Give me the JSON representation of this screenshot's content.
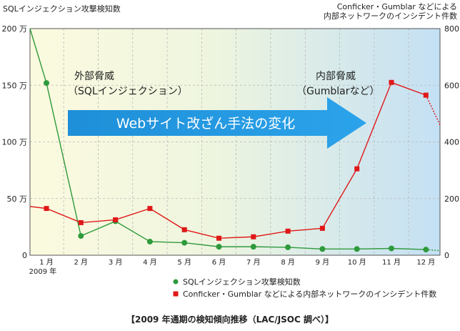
{
  "chart_data": {
    "type": "line",
    "left_axis_title": "SQLインジェクション攻撃検知数",
    "right_axis_title_line1": "Conficker・Gumblar などによる",
    "right_axis_title_line2": "内部ネットワークのインシデント件数",
    "categories": [
      "1 月",
      "2 月",
      "3 月",
      "4 月",
      "5 月",
      "6 月",
      "7 月",
      "8 月",
      "9 月",
      "10 月",
      "11 月",
      "12 月"
    ],
    "year_label": "2009 年",
    "y_left": {
      "min": 0,
      "max": 2000000,
      "ticks": [
        0,
        500000,
        1000000,
        1500000,
        2000000
      ],
      "tick_labels": [
        "0",
        "50 万",
        "100 万",
        "150 万",
        "200 万"
      ]
    },
    "y_right": {
      "min": 0,
      "max": 800,
      "ticks": [
        0,
        200,
        400,
        600,
        800
      ],
      "tick_labels": [
        "0",
        "200",
        "400",
        "600",
        "800"
      ]
    },
    "series": [
      {
        "name": "SQLインジェクション攻撃検知数",
        "axis": "left",
        "color": "#2e9a3c",
        "marker": "circle",
        "values": [
          1520000,
          170000,
          300000,
          120000,
          110000,
          75000,
          75000,
          70000,
          55000,
          55000,
          60000,
          50000
        ],
        "lead_in_value": 2000000,
        "trail_value": 40000
      },
      {
        "name": "Conficker・Gumblar などによる内部ネットワークのインシデント件数",
        "axis": "right",
        "color": "#e01818",
        "marker": "square",
        "values": [
          165,
          115,
          125,
          165,
          90,
          60,
          65,
          85,
          95,
          305,
          610,
          565
        ],
        "lead_in_value": 172,
        "trail_value": 460
      }
    ],
    "annotations": {
      "external_threat_line1": "外部脅威",
      "external_threat_line2": "（SQLインジェクション）",
      "internal_threat_line1": "内部脅威",
      "internal_threat_line2": "（Gumblarなど）",
      "arrow_text": "Webサイト改ざん手法の変化"
    },
    "caption": "【2009 年通期の検知傾向推移（LAC/JSOC 調べ）】",
    "grid": true,
    "legend_position": "bottom"
  }
}
